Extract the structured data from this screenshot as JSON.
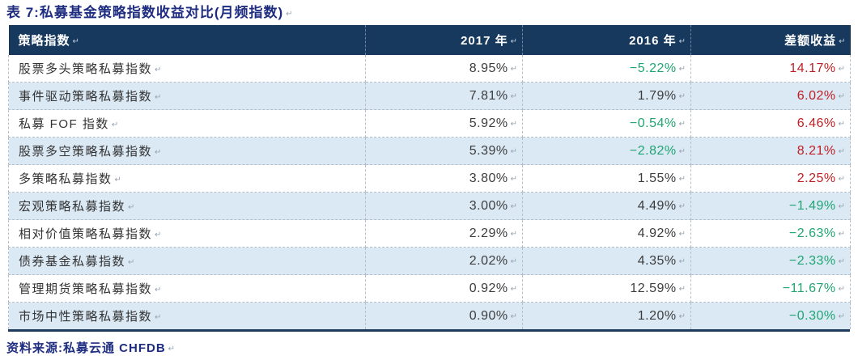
{
  "paragraph_mark": "↵",
  "title": "表 7:私募基金策略指数收益对比(月频指数)",
  "table": {
    "columns": [
      "策略指数",
      "2017 年",
      "2016 年",
      "差额收益"
    ],
    "rows": [
      {
        "name": "股票多头策略私募指数",
        "y2017": "8.95%",
        "y2016": "−5.22%",
        "diff": "14.17%"
      },
      {
        "name": "事件驱动策略私募指数",
        "y2017": "7.81%",
        "y2016": "1.79%",
        "diff": "6.02%"
      },
      {
        "name": "私募 FOF 指数",
        "y2017": "5.92%",
        "y2016": "−0.54%",
        "diff": "6.46%"
      },
      {
        "name": "股票多空策略私募指数",
        "y2017": "5.39%",
        "y2016": "−2.82%",
        "diff": "8.21%"
      },
      {
        "name": "多策略私募指数",
        "y2017": "3.80%",
        "y2016": "1.55%",
        "diff": "2.25%"
      },
      {
        "name": "宏观策略私募指数",
        "y2017": "3.00%",
        "y2016": "4.49%",
        "diff": "−1.49%"
      },
      {
        "name": "相对价值策略私募指数",
        "y2017": "2.29%",
        "y2016": "4.92%",
        "diff": "−2.63%"
      },
      {
        "name": "债券基金私募指数",
        "y2017": "2.02%",
        "y2016": "4.35%",
        "diff": "−2.33%"
      },
      {
        "name": "管理期货策略私募指数",
        "y2017": "0.92%",
        "y2016": "12.59%",
        "diff": "−11.67%"
      },
      {
        "name": "市场中性策略私募指数",
        "y2017": "0.90%",
        "y2016": "1.20%",
        "diff": "−0.30%"
      }
    ]
  },
  "source": "资料来源:私募云通 CHFDB",
  "colors": {
    "header_bg": "#17395E",
    "header_text": "#FFFFFF",
    "title_text": "#1F2D80",
    "row_alt_bg": "#DBE9F5",
    "positive_diff_text": "#BF1E23",
    "negative_value_text": "#1FA571",
    "value_text": "#3D3D3D",
    "grid_dash": "#B3C0CC",
    "bottom_rule": "#1E3A5C"
  }
}
